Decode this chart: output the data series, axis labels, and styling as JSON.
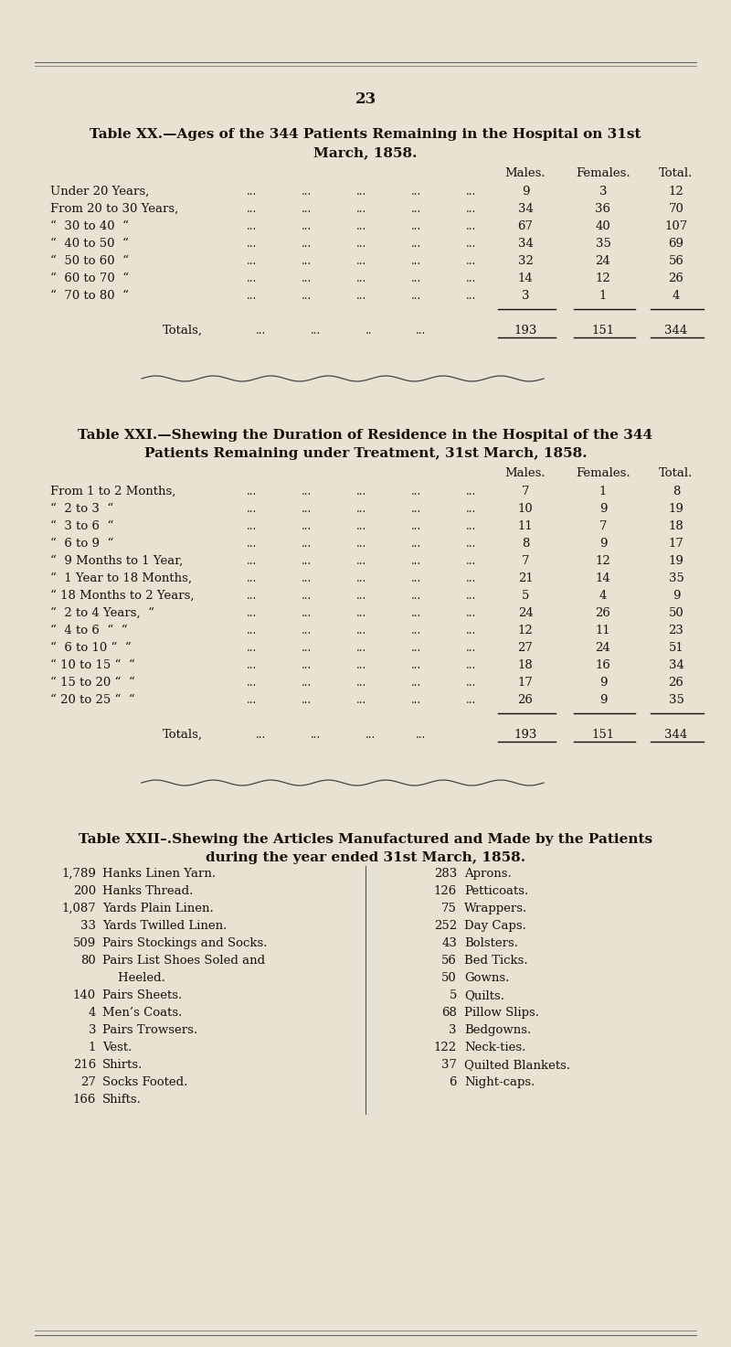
{
  "page_number": "23",
  "bg_color": "#e8e2d2",
  "text_color": "#1a1008",
  "table20_title1": "Table XX.—Ages of the 344 Patients Remaining in the Hospital on 31st",
  "table20_title2": "March, 1858.",
  "table21_title1": "Table XXI.—Shewing the Duration of Residence in the Hospital of the 344",
  "table21_title2": "Patients Remaining under Treatment, 31st March, 1858.",
  "table22_title1": "Table XXII–.Shewing the Articles Manufactured and Made by the Patients",
  "table22_title2": "during the year ended 31st March, 1858.",
  "table20_rows": [
    [
      "Under 20 Years,",
      "9",
      "3",
      "12"
    ],
    [
      "From 20 to 30 Years,",
      "34",
      "36",
      "70"
    ],
    [
      "“  30 to 40  “",
      "67",
      "40",
      "107"
    ],
    [
      "“  40 to 50  “",
      "34",
      "35",
      "69"
    ],
    [
      "“  50 to 60  “",
      "32",
      "24",
      "56"
    ],
    [
      "“  60 to 70  “",
      "14",
      "12",
      "26"
    ],
    [
      "“  70 to 80  “",
      "3",
      "1",
      "4"
    ]
  ],
  "table21_rows": [
    [
      "From 1 to 2 Months,",
      "7",
      "1",
      "8"
    ],
    [
      "“  2 to 3  “",
      "10",
      "9",
      "19"
    ],
    [
      "“  3 to 6  “",
      "11",
      "7",
      "18"
    ],
    [
      "“  6 to 9  “",
      "8",
      "9",
      "17"
    ],
    [
      "“  9 Months to 1 Year,",
      "7",
      "12",
      "19"
    ],
    [
      "“  1 Year to 18 Months,",
      "21",
      "14",
      "35"
    ],
    [
      "“ 18 Months to 2 Years,",
      "5",
      "4",
      "9"
    ],
    [
      "“  2 to 4 Years,  “",
      "24",
      "26",
      "50"
    ],
    [
      "“  4 to 6  “  “",
      "12",
      "11",
      "23"
    ],
    [
      "“  6 to 10 “  “",
      "27",
      "24",
      "51"
    ],
    [
      "“ 10 to 15 “  “",
      "18",
      "16",
      "34"
    ],
    [
      "“ 15 to 20 “  “",
      "17",
      "9",
      "26"
    ],
    [
      "“ 20 to 25 “  “",
      "26",
      "9",
      "35"
    ]
  ],
  "table22_left": [
    [
      "1,789",
      "Hanks Linen Yarn."
    ],
    [
      "  200",
      "Hanks Thread."
    ],
    [
      "1,087",
      "Yards Plain Linen."
    ],
    [
      "   33",
      "Yards Twilled Linen."
    ],
    [
      "  509",
      "Pairs Stockings and Socks."
    ],
    [
      "   80",
      "Pairs List Shoes Soled and"
    ],
    [
      "",
      "    Heeled."
    ],
    [
      "  140",
      "Pairs Sheets."
    ],
    [
      "    4",
      "Men’s Coats."
    ],
    [
      "    3",
      "Pairs Trowsers."
    ],
    [
      "    1",
      "Vest."
    ],
    [
      "  216",
      "Shirts."
    ],
    [
      "   27",
      "Socks Footed."
    ],
    [
      "  166",
      "Shifts."
    ]
  ],
  "table22_right": [
    [
      "283",
      "Aprons."
    ],
    [
      "126",
      "Petticoats."
    ],
    [
      " 75",
      "Wrappers."
    ],
    [
      "252",
      "Day Caps."
    ],
    [
      " 43",
      "Bolsters."
    ],
    [
      " 56",
      "Bed Ticks."
    ],
    [
      " 50",
      "Gowns."
    ],
    [
      "  5",
      "Quilts."
    ],
    [
      " 68",
      "Pillow Slips."
    ],
    [
      "  3",
      "Bedgowns."
    ],
    [
      "122",
      "Neck-ties."
    ],
    [
      " 37",
      "Quilted Blankets."
    ],
    [
      "  6",
      "Night-caps."
    ]
  ]
}
